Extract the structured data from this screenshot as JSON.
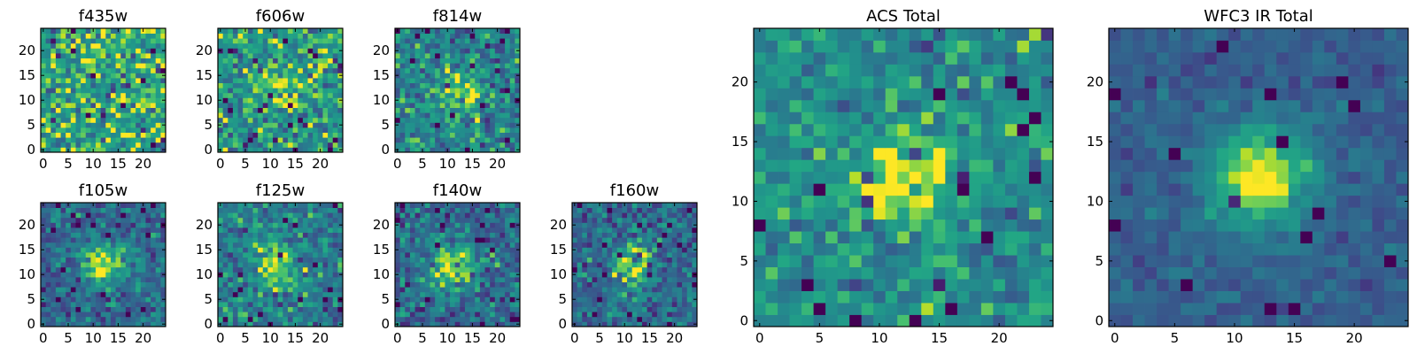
{
  "chart_data": {
    "type": "heatmap",
    "colormap": "viridis",
    "grid": false,
    "panels": [
      {
        "title": "f435w",
        "xlim": [
          0,
          25
        ],
        "ylim": [
          0,
          25
        ],
        "xticks": [
          0,
          5,
          10,
          15,
          20
        ],
        "yticks": [
          0,
          5,
          10,
          15,
          20
        ],
        "peak": 0.0,
        "center": [
          12,
          12
        ],
        "background": 0.72,
        "noise": 0.38
      },
      {
        "title": "f606w",
        "xlim": [
          0,
          25
        ],
        "ylim": [
          0,
          25
        ],
        "xticks": [
          0,
          5,
          10,
          15,
          20
        ],
        "yticks": [
          0,
          5,
          10,
          15,
          20
        ],
        "peak": 0.25,
        "center": [
          12,
          12
        ],
        "background": 0.66,
        "noise": 0.36
      },
      {
        "title": "f814w",
        "xlim": [
          0,
          25
        ],
        "ylim": [
          0,
          25
        ],
        "xticks": [
          0,
          5,
          10,
          15,
          20
        ],
        "yticks": [
          0,
          5,
          10,
          15,
          20
        ],
        "peak": 0.4,
        "center": [
          12,
          12
        ],
        "background": 0.55,
        "noise": 0.32
      },
      {
        "title": "f105w",
        "xlim": [
          0,
          25
        ],
        "ylim": [
          0,
          25
        ],
        "xticks": [
          0,
          5,
          10,
          15,
          20
        ],
        "yticks": [
          0,
          5,
          10,
          15,
          20
        ],
        "peak": 0.55,
        "center": [
          12,
          12
        ],
        "background": 0.42,
        "noise": 0.28
      },
      {
        "title": "f125w",
        "xlim": [
          0,
          25
        ],
        "ylim": [
          0,
          25
        ],
        "xticks": [
          0,
          5,
          10,
          15,
          20
        ],
        "yticks": [
          0,
          5,
          10,
          15,
          20
        ],
        "peak": 0.45,
        "center": [
          11,
          12
        ],
        "background": 0.52,
        "noise": 0.3
      },
      {
        "title": "f140w",
        "xlim": [
          0,
          25
        ],
        "ylim": [
          0,
          25
        ],
        "xticks": [
          0,
          5,
          10,
          15,
          20
        ],
        "yticks": [
          0,
          5,
          10,
          15,
          20
        ],
        "peak": 0.5,
        "center": [
          11,
          12
        ],
        "background": 0.45,
        "noise": 0.3
      },
      {
        "title": "f160w",
        "xlim": [
          0,
          25
        ],
        "ylim": [
          0,
          25
        ],
        "xticks": [
          0,
          5,
          10,
          15,
          20
        ],
        "yticks": [
          0,
          5,
          10,
          15,
          20
        ],
        "peak": 0.55,
        "center": [
          12,
          12
        ],
        "background": 0.42,
        "noise": 0.3
      },
      {
        "title": "ACS Total",
        "xlim": [
          0,
          25
        ],
        "ylim": [
          0,
          25
        ],
        "xticks": [
          0,
          5,
          10,
          15,
          20
        ],
        "yticks": [
          0,
          5,
          10,
          15,
          20
        ],
        "peak": 0.4,
        "center": [
          12,
          12
        ],
        "background": 0.6,
        "noise": 0.26
      },
      {
        "title": "WFC3 IR Total",
        "xlim": [
          0,
          25
        ],
        "ylim": [
          0,
          25
        ],
        "xticks": [
          0,
          5,
          10,
          15,
          20
        ],
        "yticks": [
          0,
          5,
          10,
          15,
          20
        ],
        "peak": 0.65,
        "center": [
          12,
          12
        ],
        "background": 0.38,
        "noise": 0.13
      }
    ]
  }
}
